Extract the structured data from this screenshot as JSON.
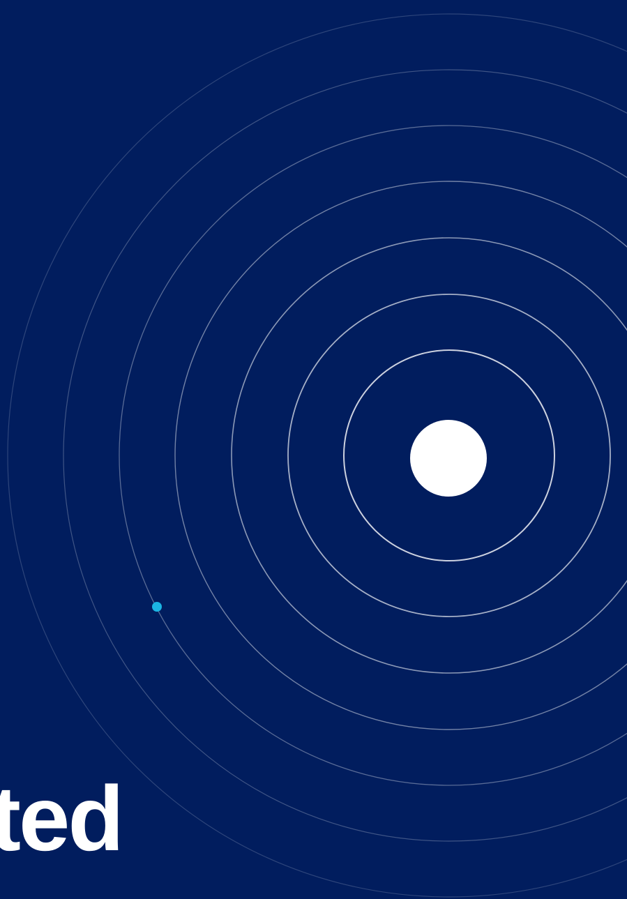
{
  "headline": {
    "text": "ted"
  },
  "colors": {
    "background": "#011d5e",
    "ring": "#ffffff",
    "core": "#ffffff",
    "accent_dot": "#1bb5e3",
    "headline": "#ffffff"
  },
  "icons": {
    "core": "solid-white-circle",
    "accent": "small-cyan-dot"
  }
}
